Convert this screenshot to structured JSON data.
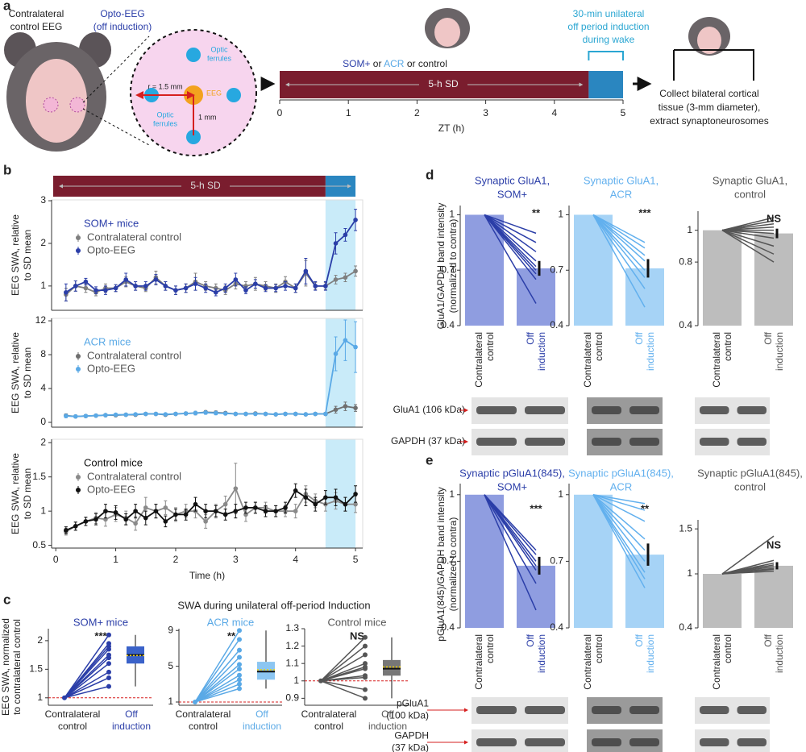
{
  "panel_a": {
    "label": "a",
    "contralateral_label": [
      "Contralateral",
      "control EEG"
    ],
    "opto_label": [
      "Opto-EEG",
      "(off induction)"
    ],
    "ferrule_labels": [
      [
        "Optic",
        "ferrules"
      ],
      [
        "Optic",
        "ferrules"
      ]
    ],
    "radius_label": "r = 1.5 mm",
    "eeg_label": "EEG",
    "distance_label": "1 mm",
    "groups": [
      "SOM+",
      "or",
      "ACR",
      "or",
      "control"
    ],
    "sd_label": "5-h SD",
    "induction_label": [
      "30-min unilateral",
      "off period induction",
      "during wake"
    ],
    "xlabel": "ZT (h)",
    "xlim": [
      0,
      5
    ],
    "xticks": [
      0,
      1,
      2,
      3,
      4,
      5
    ],
    "induction_start": 4.5,
    "collect_label": [
      "Collect bilateral cortical",
      "tissue (3-mm diameter),",
      "extract synaptoneurosomes"
    ]
  },
  "panel_b": {
    "label": "b",
    "sd_label": "5-h SD",
    "ylabel": [
      "EEG SWA, relative",
      "to SD mean"
    ],
    "xlabel": "Time (h)",
    "induction": [
      4.5,
      5
    ]
  },
  "panel_c": {
    "label": "c",
    "title": "SWA during unilateral off-period Induction",
    "ylabel": [
      "EEG SWA, normalized",
      "to contralateral control"
    ]
  },
  "panel_d": {
    "label": "d",
    "ylabel": [
      "GluA1/GAPDH band intensity",
      "(normalized to contra)"
    ],
    "blot_labels": [
      [
        "GluA1 (106 kDa)"
      ],
      [
        "GAPDH (37 kDa)"
      ]
    ]
  },
  "panel_e": {
    "label": "e",
    "ylabel": [
      "pGluA1(845)/GAPDH band intensity",
      "(normalized to contra)"
    ],
    "blot_labels": [
      [
        "pGluA1",
        "(100 kDa)"
      ],
      [
        "GAPDH",
        "(37 kDa)"
      ]
    ]
  },
  "chart_data": [
    {
      "type": "line",
      "legend_title": "SOM+ mice",
      "xlim": [
        -0.07,
        5.12
      ],
      "ylim": [
        0.43,
        3.02
      ],
      "yticks": [
        1,
        2,
        3
      ],
      "x": [
        0.17,
        0.33,
        0.5,
        0.67,
        0.83,
        1,
        1.17,
        1.33,
        1.5,
        1.67,
        1.83,
        2,
        2.17,
        2.33,
        2.5,
        2.67,
        2.83,
        3,
        3.17,
        3.33,
        3.5,
        3.67,
        3.83,
        4,
        4.17,
        4.33,
        4.5,
        4.67,
        4.83,
        5
      ],
      "series": [
        {
          "name": "Contralateral control",
          "color": "#7f7f7f",
          "values": [
            0.8,
            1.0,
            0.95,
            0.85,
            0.95,
            0.95,
            1.1,
            1.0,
            0.95,
            1.2,
            1.0,
            0.9,
            0.95,
            1.1,
            1.0,
            0.95,
            0.9,
            1.05,
            1.0,
            1.05,
            1.0,
            0.95,
            1.1,
            0.95,
            1.3,
            1.0,
            1.0,
            1.15,
            1.2,
            1.35
          ],
          "errors": [
            0.15,
            0.12,
            0.1,
            0.08,
            0.1,
            0.08,
            0.12,
            0.1,
            0.08,
            0.15,
            0.1,
            0.1,
            0.1,
            0.2,
            0.1,
            0.1,
            0.1,
            0.12,
            0.1,
            0.15,
            0.1,
            0.1,
            0.12,
            0.1,
            0.3,
            0.08,
            0.08,
            0.1,
            0.1,
            0.12
          ]
        },
        {
          "name": "Opto-EEG",
          "color": "#2b3ea8",
          "values": [
            0.85,
            1.0,
            1.1,
            0.9,
            0.9,
            0.95,
            1.15,
            1.0,
            1.0,
            1.15,
            1.0,
            0.9,
            0.95,
            1.05,
            0.95,
            0.85,
            0.95,
            1.15,
            0.9,
            1.05,
            0.95,
            0.95,
            1.0,
            0.95,
            1.35,
            1.0,
            1.0,
            2.0,
            2.2,
            2.55
          ],
          "errors": [
            0.2,
            0.12,
            0.08,
            0.08,
            0.1,
            0.08,
            0.15,
            0.1,
            0.1,
            0.12,
            0.1,
            0.1,
            0.1,
            0.15,
            0.1,
            0.08,
            0.1,
            0.15,
            0.08,
            0.1,
            0.08,
            0.08,
            0.1,
            0.1,
            0.3,
            0.1,
            0.1,
            0.25,
            0.15,
            0.25
          ]
        }
      ]
    },
    {
      "type": "line",
      "legend_title": "ACR mice",
      "xlim": [
        -0.07,
        5.12
      ],
      "ylim": [
        -0.57,
        12.29
      ],
      "yticks": [
        0,
        4,
        8,
        12
      ],
      "x": [
        0.17,
        0.33,
        0.5,
        0.67,
        0.83,
        1,
        1.17,
        1.33,
        1.5,
        1.67,
        1.83,
        2,
        2.17,
        2.33,
        2.5,
        2.67,
        2.83,
        3,
        3.17,
        3.33,
        3.5,
        3.67,
        3.83,
        4,
        4.17,
        4.33,
        4.5,
        4.67,
        4.83,
        5
      ],
      "series": [
        {
          "name": "Contralateral control",
          "color": "#6f6f6f",
          "values": [
            0.8,
            0.7,
            0.75,
            0.8,
            0.85,
            0.85,
            0.9,
            0.9,
            1.0,
            1.0,
            0.9,
            1.0,
            1.05,
            1.1,
            1.2,
            1.15,
            1.1,
            1.0,
            1.0,
            1.05,
            1.0,
            0.95,
            1.0,
            1.0,
            0.95,
            1.0,
            1.0,
            1.5,
            1.9,
            1.7
          ],
          "errors": [
            0.2,
            0.15,
            0.15,
            0.15,
            0.15,
            0.15,
            0.15,
            0.15,
            0.15,
            0.15,
            0.15,
            0.15,
            0.15,
            0.2,
            0.2,
            0.2,
            0.15,
            0.15,
            0.15,
            0.15,
            0.15,
            0.15,
            0.15,
            0.15,
            0.15,
            0.15,
            0.15,
            0.4,
            0.5,
            0.4
          ]
        },
        {
          "name": "Opto-EEG",
          "color": "#5aa9e6",
          "values": [
            0.75,
            0.7,
            0.75,
            0.8,
            0.85,
            0.9,
            0.9,
            0.95,
            1.0,
            1.0,
            0.95,
            1.0,
            1.05,
            1.1,
            1.15,
            1.1,
            1.05,
            1.0,
            1.0,
            1.0,
            1.0,
            0.95,
            1.0,
            1.0,
            0.95,
            1.0,
            1.0,
            8.1,
            9.7,
            8.9
          ],
          "errors": [
            0.2,
            0.15,
            0.15,
            0.15,
            0.15,
            0.15,
            0.15,
            0.15,
            0.15,
            0.15,
            0.15,
            0.15,
            0.15,
            0.2,
            0.2,
            0.2,
            0.15,
            0.15,
            0.15,
            0.15,
            0.15,
            0.15,
            0.15,
            0.15,
            0.15,
            0.15,
            0.15,
            2.0,
            2.4,
            3.0
          ]
        }
      ]
    },
    {
      "type": "line",
      "legend_title": "Control mice",
      "xlim": [
        -0.07,
        5.12
      ],
      "ylim": [
        0.46,
        2.05
      ],
      "yticks": [
        0.5,
        1.0,
        1.5,
        2.0
      ],
      "xticks": [
        0,
        1,
        2,
        3,
        4,
        5
      ],
      "x": [
        0.17,
        0.33,
        0.5,
        0.67,
        0.83,
        1,
        1.17,
        1.33,
        1.5,
        1.67,
        1.83,
        2,
        2.17,
        2.33,
        2.5,
        2.67,
        2.83,
        3,
        3.17,
        3.33,
        3.5,
        3.67,
        3.83,
        4,
        4.17,
        4.33,
        4.5,
        4.67,
        4.83,
        5
      ],
      "series": [
        {
          "name": "Contralateral control",
          "color": "#8a8a8a",
          "values": [
            0.7,
            0.78,
            0.85,
            0.9,
            0.88,
            0.95,
            0.9,
            0.82,
            1.05,
            1.0,
            1.05,
            0.95,
            1.0,
            1.0,
            0.85,
            1.0,
            1.1,
            1.33,
            0.95,
            1.05,
            1.05,
            1.0,
            1.0,
            1.0,
            1.25,
            1.15,
            1.1,
            1.15,
            1.1,
            1.1
          ],
          "errors": [
            0.05,
            0.06,
            0.06,
            0.08,
            0.1,
            0.1,
            0.1,
            0.1,
            0.15,
            0.1,
            0.1,
            0.1,
            0.1,
            0.1,
            0.1,
            0.1,
            0.12,
            0.37,
            0.1,
            0.08,
            0.08,
            0.08,
            0.08,
            0.1,
            0.12,
            0.1,
            0.1,
            0.12,
            0.1,
            0.12
          ]
        },
        {
          "name": "Opto-EEG",
          "color": "#111111",
          "values": [
            0.72,
            0.78,
            0.85,
            0.88,
            1.0,
            0.98,
            0.88,
            1.0,
            0.9,
            1.0,
            0.85,
            0.95,
            0.95,
            1.1,
            1.0,
            1.0,
            0.95,
            1.0,
            1.05,
            1.05,
            1.0,
            1.0,
            1.05,
            1.3,
            1.2,
            1.1,
            1.2,
            1.2,
            1.1,
            1.25
          ],
          "errors": [
            0.05,
            0.06,
            0.06,
            0.08,
            0.1,
            0.1,
            0.08,
            0.1,
            0.1,
            0.1,
            0.08,
            0.08,
            0.08,
            0.1,
            0.1,
            0.08,
            0.08,
            0.1,
            0.08,
            0.08,
            0.08,
            0.08,
            0.08,
            0.1,
            0.12,
            0.1,
            0.1,
            0.12,
            0.1,
            0.12
          ]
        }
      ]
    },
    {
      "type": "paired",
      "title": "SOM+ mice",
      "significance": "***",
      "color": "#2b3ea8",
      "box_color": "#3a62c9",
      "categories": [
        [
          "Contralateral",
          "control"
        ],
        [
          "Off",
          "induction"
        ]
      ],
      "ylim": [
        0.87,
        2.21
      ],
      "yticks": [
        1.0,
        1.5,
        2.0
      ],
      "contra_value": 1,
      "off_values": [
        2.1,
        1.95,
        1.9,
        1.85,
        1.75,
        1.7,
        1.6,
        1.45,
        1.35,
        1.2
      ],
      "box": {
        "min": 1.2,
        "q1": 1.6,
        "median": 1.75,
        "q3": 1.9,
        "max": 2.1,
        "mean": 1.74
      }
    },
    {
      "type": "paired",
      "title": "ACR mice",
      "significance": "**",
      "color": "#5aa9e6",
      "box_color": "#8cc6f2",
      "categories": [
        [
          "Contralateral",
          "control"
        ],
        [
          "Off",
          "induction"
        ]
      ],
      "ylim": [
        0.64,
        9.2
      ],
      "yticks": [
        1,
        5,
        9
      ],
      "contra_value": 1,
      "off_values": [
        9.0,
        8.0,
        6.8,
        6.0,
        5.2,
        4.7,
        4.0,
        3.5,
        3.0,
        2.5
      ],
      "box": {
        "min": 2.5,
        "q1": 3.5,
        "median": 4.4,
        "q3": 5.5,
        "max": 9.0,
        "mean": 4.6
      }
    },
    {
      "type": "paired",
      "title": "Control mice",
      "significance": "NS",
      "color": "#555555",
      "box_color": "#777777",
      "categories": [
        [
          "Contralateral",
          "control"
        ],
        [
          "Off",
          "induction"
        ]
      ],
      "ylim": [
        0.86,
        1.3
      ],
      "yticks": [
        0.9,
        1.0,
        1.1,
        1.2,
        1.3
      ],
      "contra_value": 1,
      "off_values": [
        1.25,
        1.2,
        1.15,
        1.1,
        1.08,
        1.07,
        1.03,
        1.02,
        0.95,
        0.9
      ],
      "box": {
        "min": 0.9,
        "q1": 1.03,
        "median": 1.07,
        "q3": 1.12,
        "max": 1.25,
        "mean": 1.08
      }
    },
    {
      "type": "paired_bar",
      "title": [
        "Synaptic GluA1,",
        "SOM+"
      ],
      "significance": "**",
      "color": "#2b3ea8",
      "bar_color": "#8f9de0",
      "categories": [
        [
          "Contralateral",
          "control"
        ],
        [
          "Off",
          "induction"
        ]
      ],
      "ylim": [
        0.4,
        1.05
      ],
      "yticks": [
        0.4,
        0.7,
        1.0
      ],
      "bar_values": [
        1.0,
        0.71
      ],
      "bar_error": 0.04,
      "line_ends": [
        0.9,
        0.85,
        0.8,
        0.75,
        0.72,
        0.7,
        0.68,
        0.65,
        0.52
      ]
    },
    {
      "type": "paired_bar",
      "title": [
        "Synaptic GluA1,",
        "ACR"
      ],
      "significance": "***",
      "color": "#62b0ee",
      "bar_color": "#a6d3f6",
      "categories": [
        [
          "Contralateral",
          "control"
        ],
        [
          "Off",
          "induction"
        ]
      ],
      "ylim": [
        0.4,
        1.05
      ],
      "yticks": [
        0.4,
        0.7,
        1.0
      ],
      "bar_values": [
        1.0,
        0.71
      ],
      "bar_error": 0.05,
      "line_ends": [
        0.85,
        0.82,
        0.78,
        0.75,
        0.7,
        0.66,
        0.6,
        0.5
      ]
    },
    {
      "type": "paired_bar",
      "title": [
        "Synaptic GluA1,",
        "control"
      ],
      "significance": "NS",
      "color": "#555555",
      "bar_color": "#bdbdbd",
      "categories": [
        [
          "Contralateral",
          "control"
        ],
        [
          "Off",
          "induction"
        ]
      ],
      "ylim": [
        0.4,
        1.12
      ],
      "yticks": [
        0.4,
        0.8,
        1.0
      ],
      "bar_values": [
        1.0,
        0.98
      ],
      "bar_error": 0.03,
      "line_ends": [
        1.08,
        1.06,
        1.04,
        1.02,
        1.0,
        0.98,
        0.95,
        0.9,
        0.85,
        0.8
      ]
    },
    {
      "type": "paired_bar",
      "title": [
        "Synaptic pGluA1(845),",
        "SOM+"
      ],
      "significance": "***",
      "color": "#2b3ea8",
      "bar_color": "#8f9de0",
      "categories": [
        [
          "Contralateral",
          "control"
        ],
        [
          "Off",
          "induction"
        ]
      ],
      "ylim": [
        0.4,
        1.05
      ],
      "yticks": [
        0.4,
        0.7,
        1.0
      ],
      "bar_values": [
        1.0,
        0.68
      ],
      "bar_error": 0.04,
      "line_ends": [
        0.75,
        0.73,
        0.7,
        0.68,
        0.66,
        0.6,
        0.48
      ]
    },
    {
      "type": "paired_bar",
      "title": [
        "Synaptic pGluA1(845),",
        "ACR"
      ],
      "significance": "**",
      "color": "#62b0ee",
      "bar_color": "#a6d3f6",
      "categories": [
        [
          "Contralateral",
          "control"
        ],
        [
          "Off",
          "induction"
        ]
      ],
      "ylim": [
        0.4,
        1.05
      ],
      "yticks": [
        0.4,
        0.7,
        1.0
      ],
      "bar_values": [
        1.0,
        0.73
      ],
      "bar_error": 0.05,
      "line_ends": [
        0.96,
        0.93,
        0.88,
        0.8,
        0.75,
        0.7,
        0.65,
        0.62,
        0.58
      ]
    },
    {
      "type": "paired_bar",
      "title": [
        "Synaptic pGluA1(845),",
        "control"
      ],
      "significance": "NS",
      "color": "#555555",
      "bar_color": "#bdbdbd",
      "categories": [
        [
          "Contralateral",
          "control"
        ],
        [
          "Off",
          "induction"
        ]
      ],
      "ylim": [
        0.4,
        1.6
      ],
      "yticks": [
        0.4,
        1.0,
        1.5
      ],
      "bar_values": [
        1.0,
        1.09
      ],
      "bar_error": 0.04,
      "line_ends": [
        1.42,
        1.15,
        1.12,
        1.1,
        1.08,
        1.06,
        1.05,
        1.03
      ]
    }
  ]
}
